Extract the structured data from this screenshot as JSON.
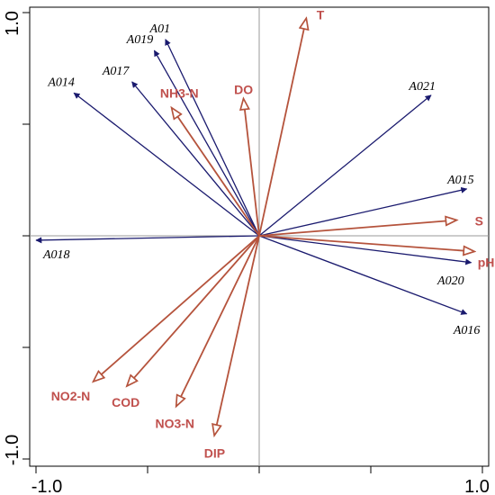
{
  "chart_data": {
    "type": "biplot",
    "title": "",
    "xlabel": "",
    "ylabel": "",
    "xlim": [
      -1.0,
      1.0
    ],
    "ylim": [
      -1.0,
      1.0
    ],
    "x_tick_labels": [
      "-1.0",
      "1.0"
    ],
    "y_tick_labels": [
      "1.0",
      "-1.0"
    ],
    "zero_lines": true,
    "grid": false,
    "colors": {
      "species": "#1a1a6e",
      "environment": "#b5533c",
      "environment_label": "#c0504d",
      "axis": "#000000",
      "zero_line": "#999999"
    },
    "species_arrows": [
      {
        "label": "A01",
        "x": -0.42,
        "y": 0.88
      },
      {
        "label": "A019",
        "x": -0.47,
        "y": 0.83
      },
      {
        "label": "A017",
        "x": -0.57,
        "y": 0.69
      },
      {
        "label": "A014",
        "x": -0.83,
        "y": 0.64
      },
      {
        "label": "A021",
        "x": 0.77,
        "y": 0.63
      },
      {
        "label": "A015",
        "x": 0.93,
        "y": 0.21
      },
      {
        "label": "A018",
        "x": -1.0,
        "y": -0.02
      },
      {
        "label": "A020",
        "x": 0.95,
        "y": -0.12
      },
      {
        "label": "A016",
        "x": 0.93,
        "y": -0.35
      }
    ],
    "environment_arrows": [
      {
        "label": "T",
        "x": 0.21,
        "y": 0.97
      },
      {
        "label": "DO",
        "x": -0.07,
        "y": 0.61
      },
      {
        "label": "NH3-N",
        "x": -0.39,
        "y": 0.57
      },
      {
        "label": "S",
        "x": 0.88,
        "y": 0.07
      },
      {
        "label": "pH",
        "x": 0.96,
        "y": -0.07
      },
      {
        "label": "NO2-N",
        "x": -0.74,
        "y": -0.65
      },
      {
        "label": "COD",
        "x": -0.59,
        "y": -0.67
      },
      {
        "label": "NO3-N",
        "x": -0.37,
        "y": -0.76
      },
      {
        "label": "DIP",
        "x": -0.2,
        "y": -0.89
      }
    ]
  }
}
